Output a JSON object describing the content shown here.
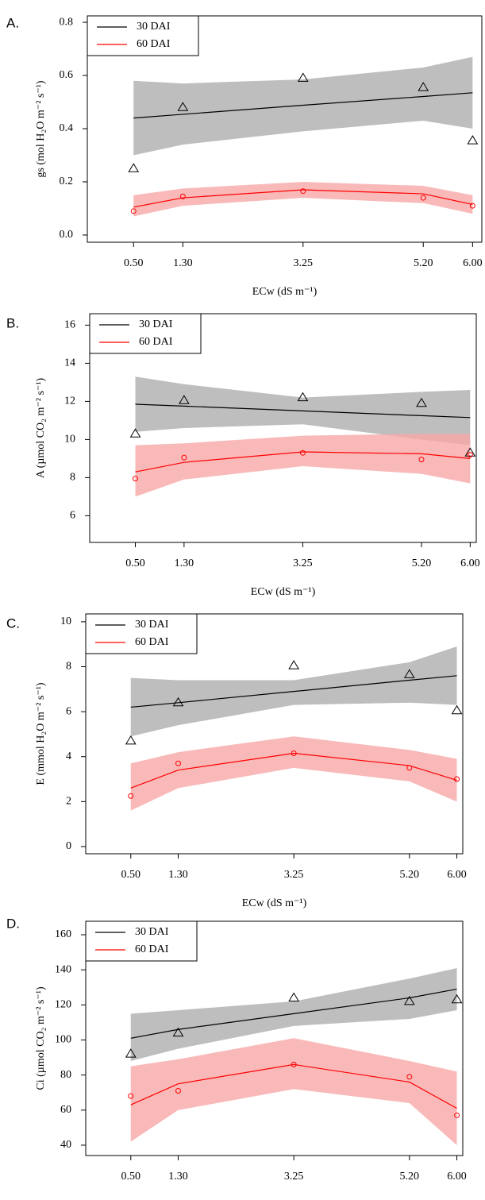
{
  "chart_data": [
    {
      "type": "scatter",
      "panel_label": "A.",
      "ylabel": "gs (mol H₂O m⁻² s⁻¹)",
      "xlabel": "ECw (dS m⁻¹)",
      "x": [
        0.5,
        1.3,
        3.25,
        5.2,
        6.0
      ],
      "xlim": [
        -0.25,
        6.15
      ],
      "xticks": [
        {
          "value": 0.5,
          "label": "0.50"
        },
        {
          "value": 1.3,
          "label": "1.30"
        },
        {
          "value": 3.25,
          "label": "3.25"
        },
        {
          "value": 5.2,
          "label": "5.20"
        },
        {
          "value": 6.0,
          "label": "6.00"
        }
      ],
      "ylim": [
        -0.027,
        0.824
      ],
      "yticks": [
        {
          "value": 0,
          "label": "0.0"
        },
        {
          "value": 0.2,
          "label": "0.2"
        },
        {
          "value": 0.4,
          "label": "0.4"
        },
        {
          "value": 0.6,
          "label": "0.6"
        },
        {
          "value": 0.8,
          "label": "0.8"
        }
      ],
      "series": [
        {
          "name": "30 DAI",
          "color": "#000000",
          "marker": "triangle",
          "band_color": "#bebebe",
          "values": [
            0.25,
            0.48,
            0.59,
            0.555,
            0.355
          ],
          "fit": [
            0.44,
            0.454,
            0.488,
            0.521,
            0.535
          ],
          "band_lower": [
            0.3,
            0.34,
            0.39,
            0.43,
            0.4
          ],
          "band_upper": [
            0.58,
            0.57,
            0.585,
            0.63,
            0.67
          ]
        },
        {
          "name": "60 DAI",
          "color": "#ff0000",
          "marker": "circle",
          "band_color": "#f8a8a8",
          "values": [
            0.09,
            0.145,
            0.165,
            0.14,
            0.11
          ],
          "fit": [
            0.105,
            0.14,
            0.17,
            0.155,
            0.115
          ],
          "band_lower": [
            0.07,
            0.11,
            0.14,
            0.12,
            0.08
          ],
          "band_upper": [
            0.15,
            0.175,
            0.2,
            0.185,
            0.15
          ]
        }
      ]
    },
    {
      "type": "scatter",
      "panel_label": "B.",
      "ylabel": "A (µmol CO₂ m⁻² s⁻¹)",
      "xlabel": "ECw (dS m⁻¹)",
      "x": [
        0.5,
        1.3,
        3.25,
        5.2,
        6.0
      ],
      "xlim": [
        -0.25,
        6.1
      ],
      "xticks": [
        {
          "value": 0.5,
          "label": "0.50"
        },
        {
          "value": 1.3,
          "label": "1.30"
        },
        {
          "value": 3.25,
          "label": "3.25"
        },
        {
          "value": 5.2,
          "label": "5.20"
        },
        {
          "value": 6.0,
          "label": "6.00"
        }
      ],
      "ylim": [
        4.6,
        16.6
      ],
      "yticks": [
        6,
        8,
        10,
        12,
        14,
        16
      ],
      "series": [
        {
          "name": "30 DAI",
          "color": "#000000",
          "marker": "triangle",
          "band_color": "#bebebe",
          "values": [
            10.3,
            12.05,
            12.2,
            11.9,
            9.3
          ],
          "fit": [
            11.85,
            11.75,
            11.5,
            11.25,
            11.15
          ],
          "band_lower": [
            10.4,
            10.6,
            10.8,
            10.0,
            9.7
          ],
          "band_upper": [
            13.3,
            12.9,
            12.2,
            12.5,
            12.6
          ]
        },
        {
          "name": "60 DAI",
          "color": "#ff0000",
          "marker": "circle",
          "band_color": "#f8a8a8",
          "values": [
            7.95,
            9.05,
            9.3,
            8.95,
            9.2
          ],
          "fit": [
            8.3,
            8.8,
            9.35,
            9.25,
            9.0
          ],
          "band_lower": [
            7.0,
            7.9,
            8.6,
            8.2,
            7.7
          ],
          "band_upper": [
            9.7,
            9.8,
            10.2,
            10.3,
            10.3
          ]
        }
      ]
    },
    {
      "type": "scatter",
      "panel_label": "C.",
      "ylabel": "E (mmol H₂O m⁻² s⁻¹)",
      "xlabel": "ECw (dS m⁻¹)",
      "x": [
        0.5,
        1.3,
        3.25,
        5.2,
        6.0
      ],
      "xlim": [
        -0.26,
        6.1
      ],
      "xticks": [
        {
          "value": 0.5,
          "label": "0.50"
        },
        {
          "value": 1.3,
          "label": "1.30"
        },
        {
          "value": 3.25,
          "label": "3.25"
        },
        {
          "value": 5.2,
          "label": "5.20"
        },
        {
          "value": 6.0,
          "label": "6.00"
        }
      ],
      "ylim": [
        -0.32,
        10.35
      ],
      "yticks": [
        0,
        2,
        4,
        6,
        8,
        10
      ],
      "series": [
        {
          "name": "30 DAI",
          "color": "#000000",
          "marker": "triangle",
          "band_color": "#bebebe",
          "values": [
            4.7,
            6.4,
            8.05,
            7.65,
            6.05
          ],
          "fit": [
            6.2,
            6.4,
            6.9,
            7.4,
            7.6
          ],
          "band_lower": [
            4.9,
            5.4,
            6.3,
            6.4,
            6.3
          ],
          "band_upper": [
            7.5,
            7.4,
            7.4,
            8.2,
            8.9
          ]
        },
        {
          "name": "60 DAI",
          "color": "#ff0000",
          "marker": "circle",
          "band_color": "#f8a8a8",
          "values": [
            2.25,
            3.7,
            4.15,
            3.5,
            3.0
          ],
          "fit": [
            2.6,
            3.4,
            4.15,
            3.6,
            2.95
          ],
          "band_lower": [
            1.6,
            2.6,
            3.5,
            2.9,
            2.0
          ],
          "band_upper": [
            3.7,
            4.2,
            4.9,
            4.3,
            3.9
          ]
        }
      ]
    },
    {
      "type": "scatter",
      "panel_label": "D.",
      "ylabel": "Ci (µmol CO₂ m⁻² s⁻¹)",
      "xlabel": "ECw (dS m⁻¹)",
      "x": [
        0.5,
        1.3,
        3.25,
        5.2,
        6.0
      ],
      "xlim": [
        -0.26,
        6.1
      ],
      "xticks": [
        {
          "value": 0.5,
          "label": "0.50"
        },
        {
          "value": 1.3,
          "label": "1.30"
        },
        {
          "value": 3.25,
          "label": "3.25"
        },
        {
          "value": 5.2,
          "label": "5.20"
        },
        {
          "value": 6.0,
          "label": "6.00"
        }
      ],
      "ylim": [
        34.1,
        167.7
      ],
      "yticks": [
        40,
        60,
        80,
        100,
        120,
        140,
        160
      ],
      "series": [
        {
          "name": "30 DAI",
          "color": "#000000",
          "marker": "triangle",
          "band_color": "#bebebe",
          "values": [
            92,
            104,
            124,
            122,
            123
          ],
          "fit": [
            101,
            106,
            115,
            124,
            129
          ],
          "band_lower": [
            88,
            95,
            108,
            112,
            117
          ],
          "band_upper": [
            115,
            117,
            122,
            135,
            141
          ]
        },
        {
          "name": "60 DAI",
          "color": "#ff0000",
          "marker": "circle",
          "band_color": "#f8a8a8",
          "values": [
            68,
            71,
            86,
            79,
            57
          ],
          "fit": [
            63,
            75,
            86,
            76,
            61
          ],
          "band_lower": [
            42,
            60,
            72,
            64,
            40
          ],
          "band_upper": [
            85,
            89,
            101,
            88,
            82
          ]
        }
      ]
    }
  ]
}
